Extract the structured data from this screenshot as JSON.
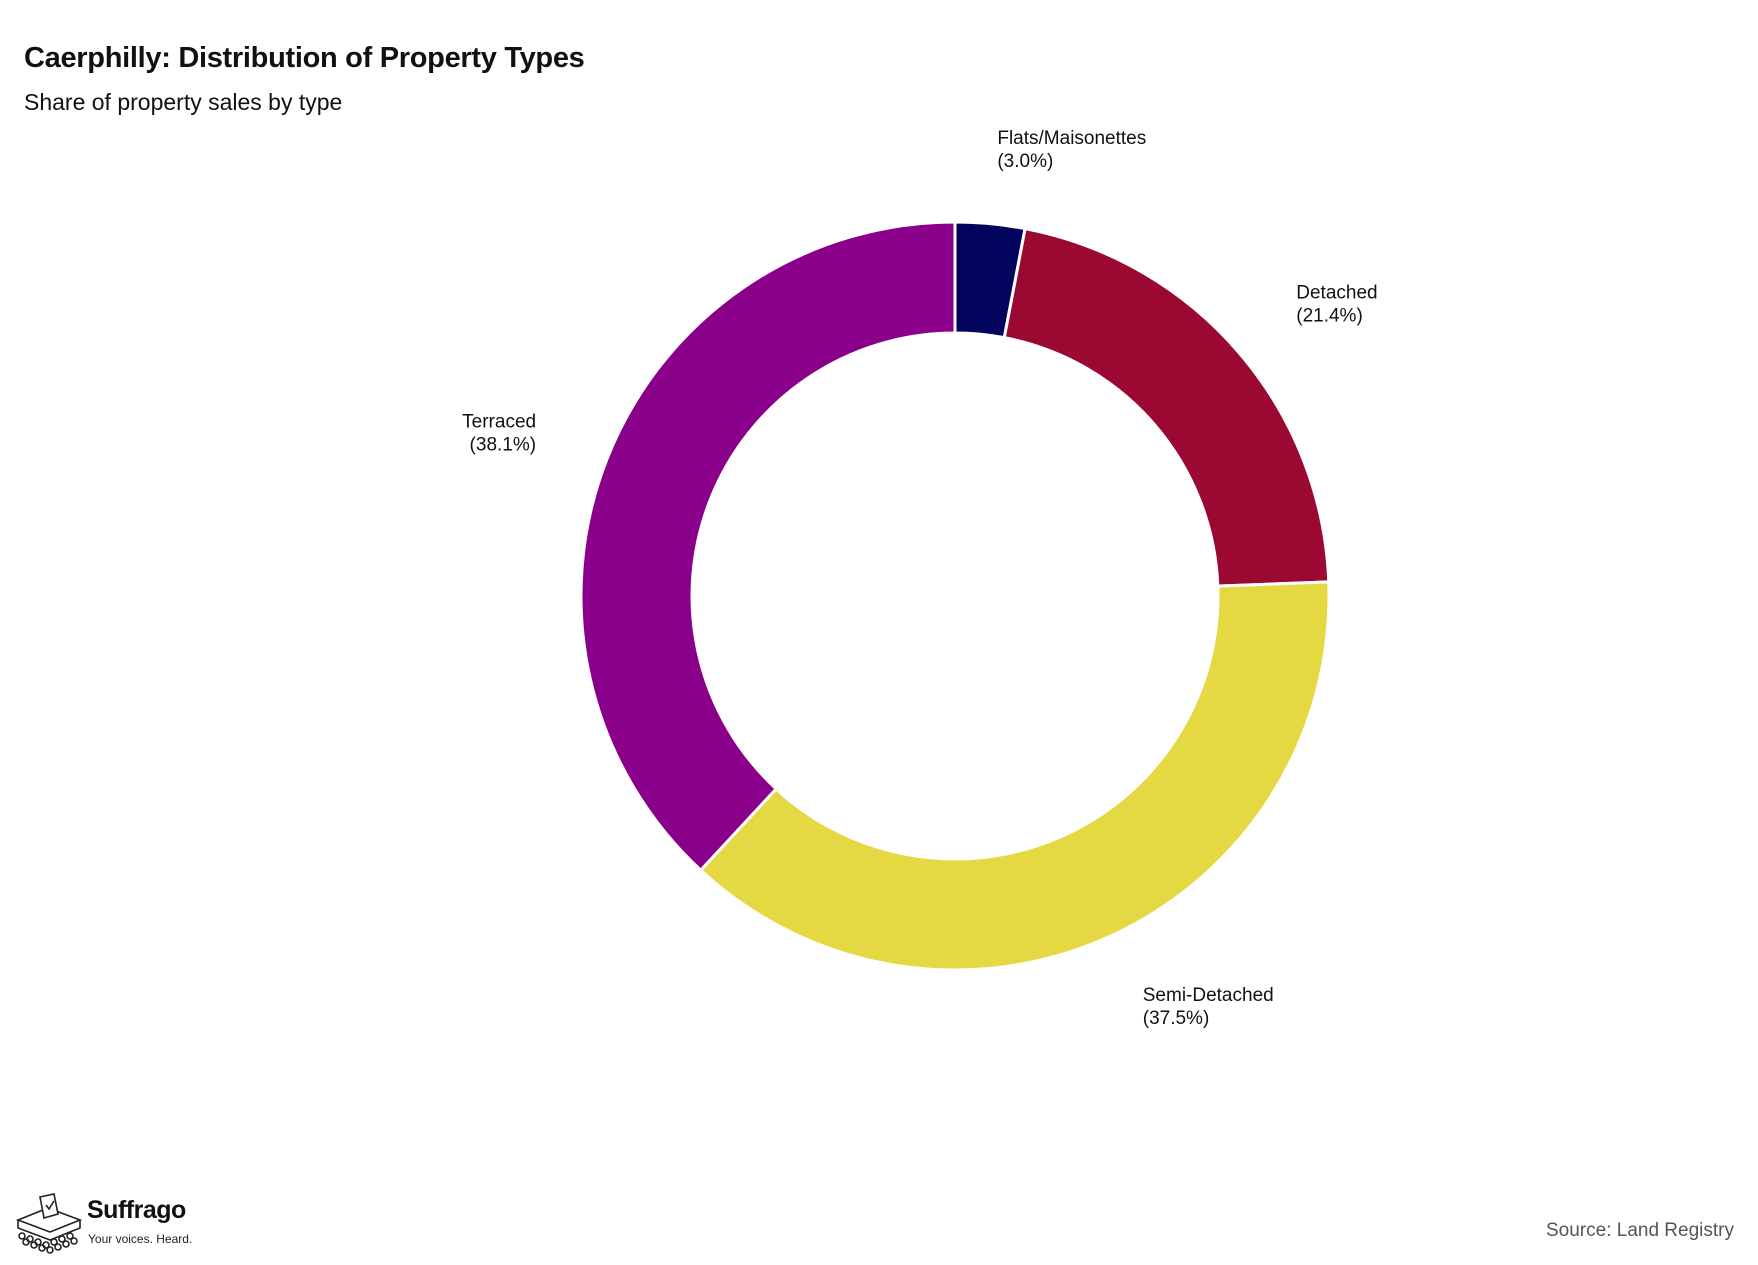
{
  "title": "Caerphilly: Distribution of Property Types",
  "subtitle": "Share of property sales by type",
  "source": "Source: Land Registry",
  "brand": {
    "name": "Suffrago",
    "tagline": "Your voices. Heard.",
    "logo_icon": "ballot-box-icon"
  },
  "chart_data": {
    "type": "pie",
    "variant": "donut",
    "title": "Caerphilly: Distribution of Property Types",
    "subtitle": "Share of property sales by type",
    "unit": "%",
    "slices": [
      {
        "label": "Flats/Maisonettes",
        "value": 3.0,
        "value_label": "(3.0%)",
        "color": "#03045e"
      },
      {
        "label": "Detached",
        "value": 21.4,
        "value_label": "(21.4%)",
        "color": "#9b0831"
      },
      {
        "label": "Semi-Detached",
        "value": 37.5,
        "value_label": "(37.5%)",
        "color": "#e4d843"
      },
      {
        "label": "Terraced",
        "value": 38.1,
        "value_label": "(38.1%)",
        "color": "#8b008b"
      }
    ],
    "start_angle": "12 o'clock",
    "direction": "clockwise",
    "legend": "none"
  }
}
